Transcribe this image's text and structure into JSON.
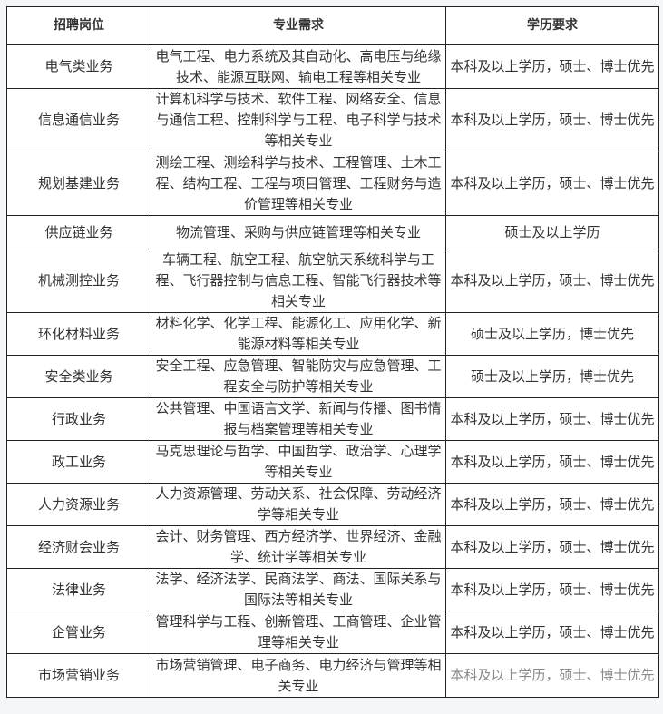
{
  "headers": [
    "招聘岗位",
    "专业需求",
    "学历要求"
  ],
  "rows": [
    {
      "position": "电气类业务",
      "majors": "电气工程、电力系统及其自动化、高电压与绝缘技术、能源互联网、输电工程等相关专业",
      "education": "本科及以上学历，硕士、博士优先"
    },
    {
      "position": "信息通信业务",
      "majors": "计算机科学与技术、软件工程、网络安全、信息与通信工程、控制科学与工程、电子科学与技术等相关专业",
      "education": "本科及以上学历，硕士、博士优先"
    },
    {
      "position": "规划基建业务",
      "majors": "测绘工程、测绘科学与技术、工程管理、土木工程、结构工程、工程与项目管理、工程财务与造价管理等相关专业",
      "education": "本科及以上学历，硕士、博士优先"
    },
    {
      "position": "供应链业务",
      "majors": "物流管理、采购与供应链管理等相关专业",
      "education": "硕士及以上学历"
    },
    {
      "position": "机械测控业务",
      "majors": "车辆工程、航空工程、航空航天系统科学与工程、飞行器控制与信息工程、智能飞行器技术等相关专业",
      "education": "本科及以上学历，硕士、博士优先"
    },
    {
      "position": "环化材料业务",
      "majors": "材料化学、化学工程、能源化工、应用化学、新能源材料等相关专业",
      "education": "硕士及以上学历，博士优先"
    },
    {
      "position": "安全类业务",
      "majors": "安全工程、应急管理、智能防灾与应急管理、工程安全与防护等相关专业",
      "education": "硕士及以上学历，博士优先"
    },
    {
      "position": "行政业务",
      "majors": "公共管理、中国语言文学、新闻与传播、图书情报与档案管理等相关专业",
      "education": "本科及以上学历，硕士、博士优先"
    },
    {
      "position": "政工业务",
      "majors": "马克思理论与哲学、中国哲学、政治学、心理学等相关专业",
      "education": "本科及以上学历，硕士、博士优先"
    },
    {
      "position": "人力资源业务",
      "majors": "人力资源管理、劳动关系、社会保障、劳动经济学等相关专业",
      "education": "本科及以上学历，硕士、博士优先"
    },
    {
      "position": "经济财会业务",
      "majors": "会计、财务管理、西方经济学、世界经济、金融学、统计学等相关专业",
      "education": "本科及以上学历，硕士、博士优先"
    },
    {
      "position": "法律业务",
      "majors": "法学、经济法学、民商法学、商法、国际关系与国际法等相关专业",
      "education": "本科及以上学历，硕士、博士优先"
    },
    {
      "position": "企管业务",
      "majors": "管理科学与工程、创新管理、工商管理、企业管理等相关专业",
      "education": "本科及以上学历，硕士、博士优先"
    },
    {
      "position": "市场营销业务",
      "majors": "市场营销管理、电子商务、电力经济与管理等相关专业",
      "education": "本科及以上学历，硕士、博士优先"
    }
  ]
}
